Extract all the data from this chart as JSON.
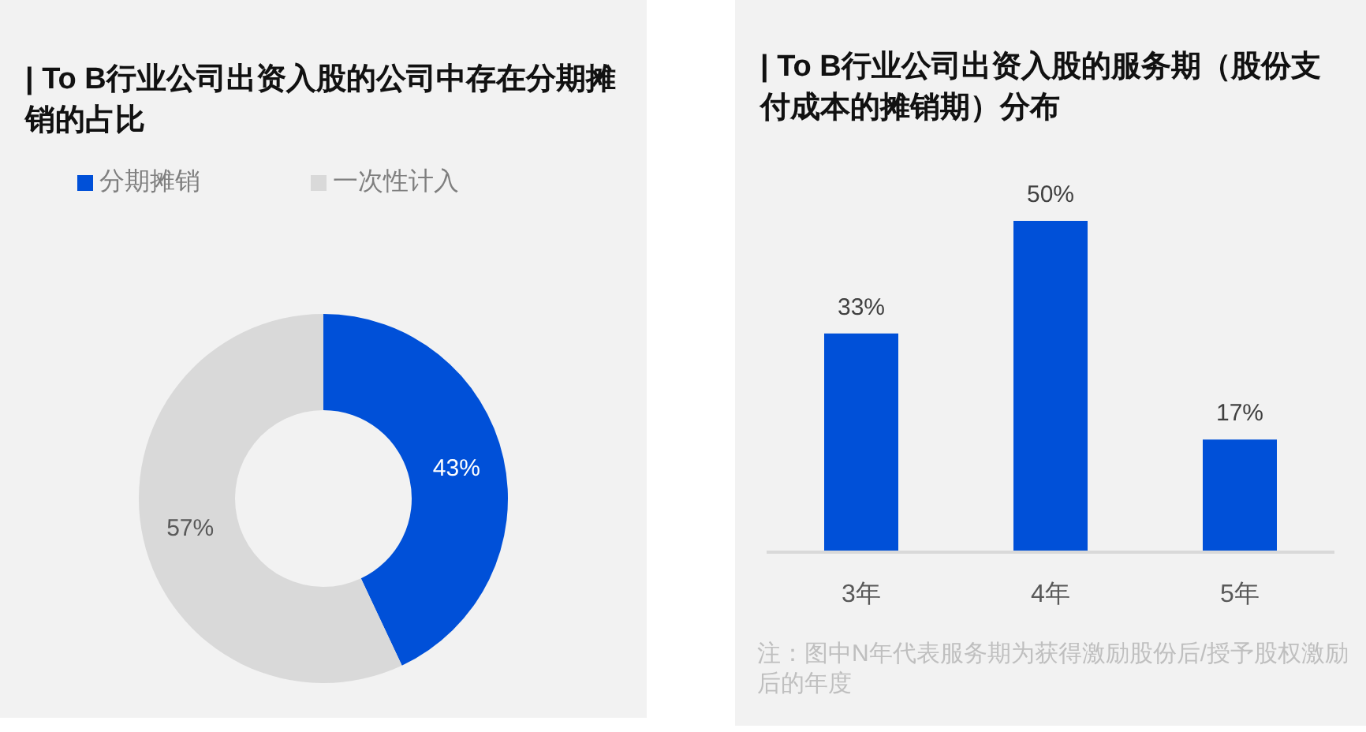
{
  "chart_data": [
    {
      "type": "donut",
      "title": "| To B行业公司出资入股的公司中存在分期摊销的占比",
      "categories": [
        "分期摊销",
        "一次性计入"
      ],
      "values": [
        43,
        57
      ],
      "colors": [
        "#0050d8",
        "#d9d9d9"
      ],
      "value_labels": [
        "43%",
        "57%"
      ],
      "legend": "top"
    },
    {
      "type": "bar",
      "title": "| To B行业公司出资入股的服务期（股份支付成本的摊销期）分布",
      "categories": [
        "3年",
        "4年",
        "5年"
      ],
      "values": [
        33,
        50,
        17
      ],
      "color": "#0050d8",
      "value_labels": [
        "33%",
        "50%",
        "17%"
      ],
      "annotations": [
        "注：图中N年代表服务期为获得激励股份后/授予股权激励后的年度"
      ]
    }
  ]
}
